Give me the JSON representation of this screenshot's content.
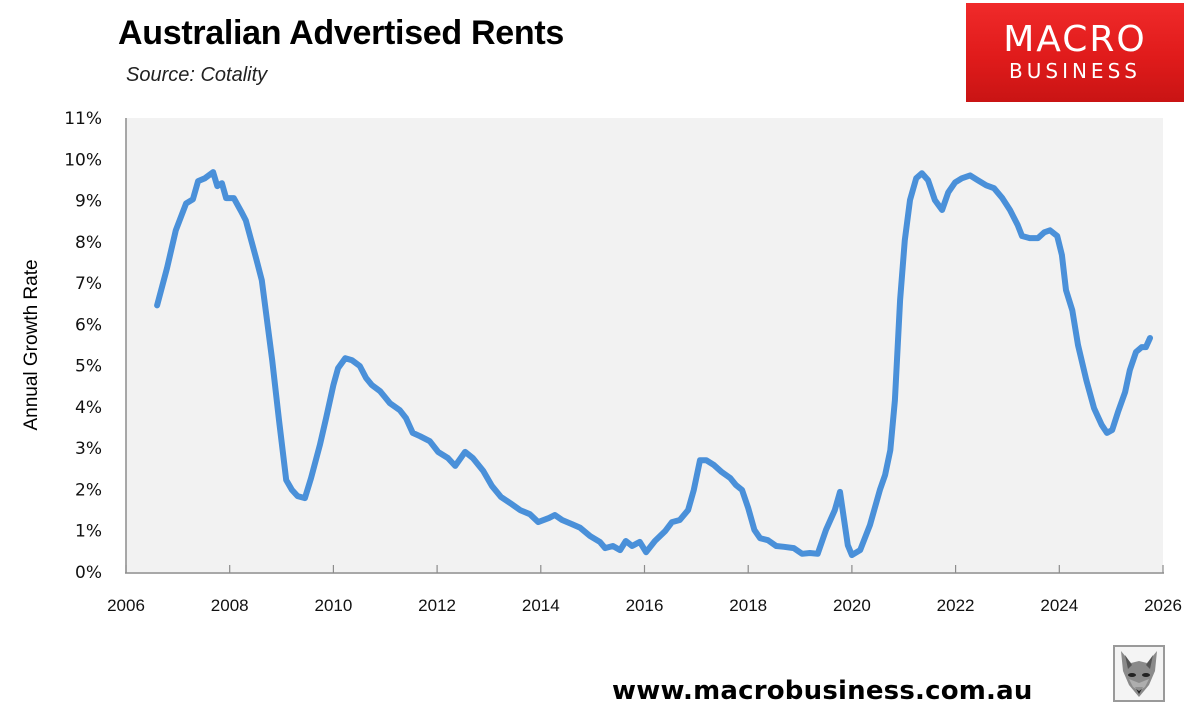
{
  "header": {
    "title": "Australian Advertised Rents",
    "subtitle": "Source: Cotality"
  },
  "logo": {
    "line1": "MACRO",
    "line2": "BUSINESS",
    "color": "#e01b1b"
  },
  "footer": {
    "url": "www.macrobusiness.com.au",
    "mascot": "fox-icon"
  },
  "chart_data": {
    "type": "line",
    "title": "Australian Advertised Rents",
    "subtitle": "Source: Cotality",
    "xlabel": "",
    "ylabel": "Annual Growth Rate",
    "xlim": [
      2006,
      2026
    ],
    "ylim": [
      0,
      11
    ],
    "x_ticks": [
      "2006",
      "2008",
      "2010",
      "2012",
      "2014",
      "2016",
      "2018",
      "2020",
      "2022",
      "2024",
      "2026"
    ],
    "y_ticks": [
      "0%",
      "1%",
      "2%",
      "3%",
      "4%",
      "5%",
      "6%",
      "7%",
      "8%",
      "9%",
      "10%",
      "11%"
    ],
    "grid": false,
    "legend": null,
    "series": [
      {
        "name": "Annual Growth Rate",
        "color": "#4a90d9",
        "x": [
          2006.6,
          2006.79,
          2006.96,
          2007.16,
          2007.29,
          2007.39,
          2007.52,
          2007.68,
          2007.76,
          2007.85,
          2007.93,
          2008.08,
          2008.22,
          2008.31,
          2008.51,
          2008.62,
          2008.82,
          2008.95,
          2009.09,
          2009.2,
          2009.31,
          2009.45,
          2009.57,
          2009.74,
          2009.86,
          2010.0,
          2010.09,
          2010.23,
          2010.36,
          2010.51,
          2010.63,
          2010.74,
          2010.9,
          2011.09,
          2011.28,
          2011.4,
          2011.53,
          2011.67,
          2011.86,
          2012.02,
          2012.21,
          2012.35,
          2012.54,
          2012.69,
          2012.89,
          2013.06,
          2013.23,
          2013.41,
          2013.6,
          2013.79,
          2013.95,
          2014.16,
          2014.27,
          2014.41,
          2014.6,
          2014.76,
          2014.95,
          2015.14,
          2015.24,
          2015.39,
          2015.53,
          2015.64,
          2015.76,
          2015.91,
          2016.03,
          2016.2,
          2016.4,
          2016.53,
          2016.68,
          2016.84,
          2016.95,
          2017.07,
          2017.19,
          2017.34,
          2017.49,
          2017.65,
          2017.76,
          2017.88,
          2018.0,
          2018.12,
          2018.23,
          2018.38,
          2018.54,
          2018.69,
          2018.88,
          2019.04,
          2019.19,
          2019.34,
          2019.5,
          2019.67,
          2019.77,
          2019.92,
          2020.0,
          2020.16,
          2020.35,
          2020.54,
          2020.64,
          2020.74,
          2020.83,
          2020.93,
          2021.02,
          2021.12,
          2021.24,
          2021.35,
          2021.47,
          2021.6,
          2021.74,
          2021.86,
          2021.99,
          2022.12,
          2022.28,
          2022.43,
          2022.59,
          2022.74,
          2022.9,
          2023.05,
          2023.2,
          2023.28,
          2023.43,
          2023.59,
          2023.71,
          2023.82,
          2023.96,
          2024.05,
          2024.13,
          2024.25,
          2024.36,
          2024.52,
          2024.67,
          2024.82,
          2024.92,
          2025.02,
          2025.13,
          2025.27,
          2025.36,
          2025.48,
          2025.59,
          2025.67,
          2025.75
        ],
        "values": [
          6.46,
          7.36,
          8.28,
          8.93,
          9.03,
          9.47,
          9.54,
          9.69,
          9.35,
          9.42,
          9.06,
          9.06,
          8.74,
          8.52,
          7.6,
          7.07,
          5.13,
          3.68,
          2.23,
          1.99,
          1.84,
          1.79,
          2.28,
          3.08,
          3.73,
          4.53,
          4.94,
          5.18,
          5.13,
          4.99,
          4.7,
          4.53,
          4.38,
          4.09,
          3.92,
          3.73,
          3.37,
          3.29,
          3.17,
          2.91,
          2.76,
          2.57,
          2.91,
          2.76,
          2.45,
          2.08,
          1.82,
          1.67,
          1.5,
          1.4,
          1.21,
          1.31,
          1.38,
          1.26,
          1.16,
          1.07,
          0.87,
          0.73,
          0.58,
          0.63,
          0.53,
          0.75,
          0.63,
          0.73,
          0.48,
          0.75,
          0.99,
          1.21,
          1.26,
          1.5,
          1.99,
          2.71,
          2.71,
          2.59,
          2.42,
          2.28,
          2.11,
          1.99,
          1.55,
          1.02,
          0.82,
          0.77,
          0.63,
          0.61,
          0.58,
          0.44,
          0.46,
          0.44,
          1.02,
          1.5,
          1.94,
          0.65,
          0.41,
          0.53,
          1.14,
          1.99,
          2.35,
          2.95,
          4.16,
          6.59,
          8.04,
          9.01,
          9.54,
          9.66,
          9.49,
          9.01,
          8.77,
          9.2,
          9.44,
          9.54,
          9.61,
          9.49,
          9.37,
          9.3,
          9.06,
          8.77,
          8.4,
          8.14,
          8.09,
          8.09,
          8.23,
          8.28,
          8.14,
          7.68,
          6.83,
          6.34,
          5.5,
          4.65,
          3.97,
          3.56,
          3.37,
          3.44,
          3.87,
          4.36,
          4.89,
          5.33,
          5.45,
          5.45,
          5.67
        ]
      }
    ]
  }
}
